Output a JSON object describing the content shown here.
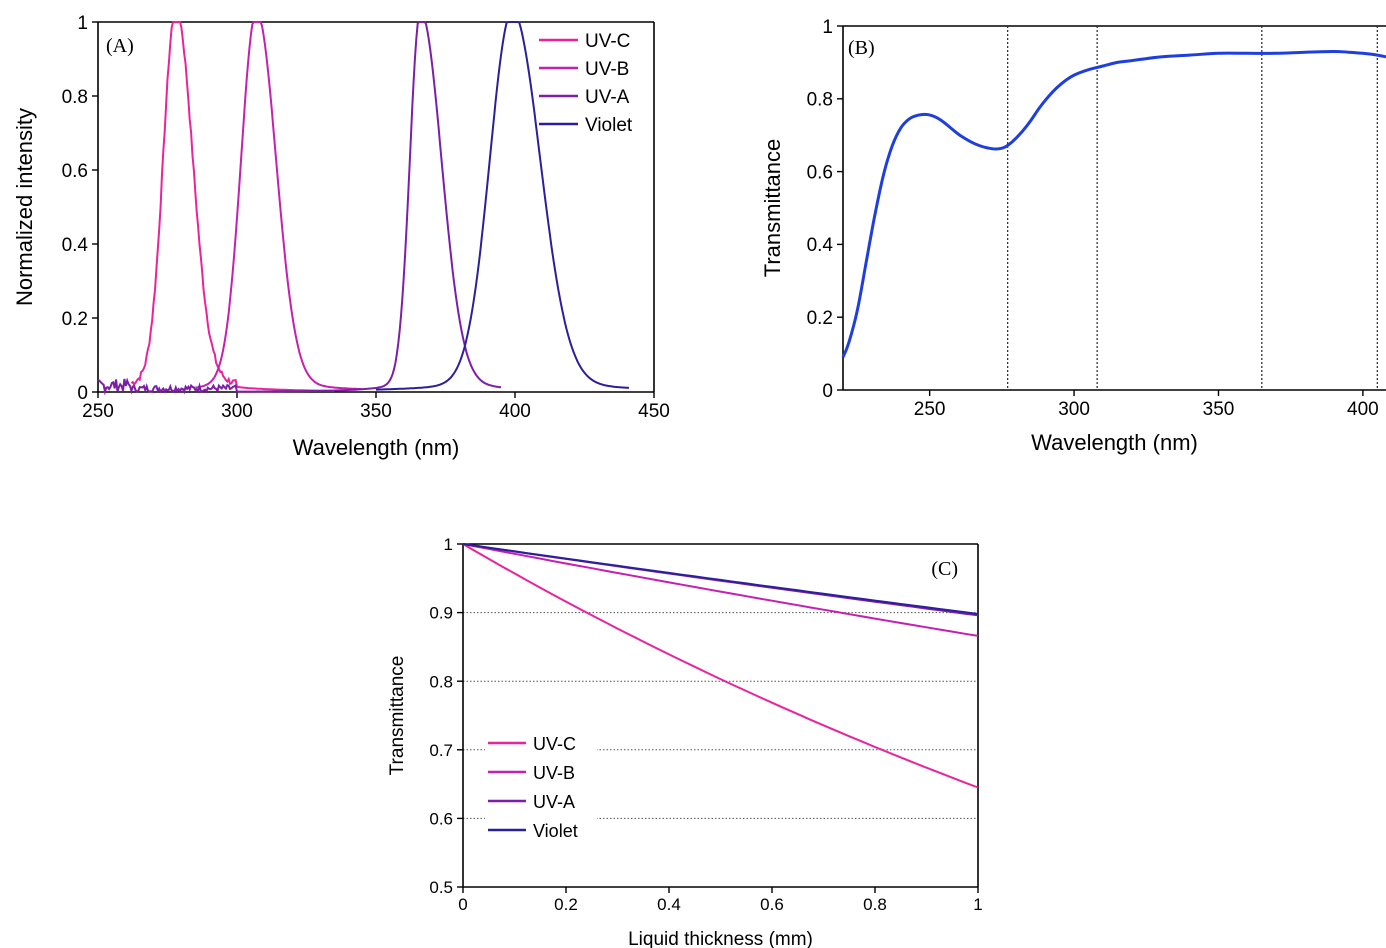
{
  "colors": {
    "uvc": "#e8239c",
    "uvb": "#c51fb0",
    "uva": "#7d1ea8",
    "violet": "#2c1f9a",
    "transmittance_curve": "#1f3fdc",
    "axis": "#000000",
    "grid": "#555555"
  },
  "chart_data": [
    {
      "id": "A",
      "type": "line",
      "panel_label": "(A)",
      "xlabel": "Wavelength (nm)",
      "ylabel": "Normalized intensity",
      "xlim": [
        250,
        450
      ],
      "ylim": [
        0,
        1
      ],
      "xticks": [
        "250",
        "300",
        "350",
        "400",
        "450"
      ],
      "yticks": [
        "0",
        "0.2",
        "0.4",
        "0.6",
        "0.8",
        "1"
      ],
      "legend_position": "top-right",
      "grid": false,
      "series": [
        {
          "name": "UV-C",
          "color_key": "uvc",
          "peak": 278,
          "width_left": 4.5,
          "width_right": 6.0,
          "range": [
            262,
            335
          ]
        },
        {
          "name": "UV-B",
          "color_key": "uvb",
          "peak": 307,
          "width_left": 5.5,
          "width_right": 7.0,
          "range": [
            285,
            345
          ]
        },
        {
          "name": "UV-A",
          "color_key": "uva",
          "peak": 366,
          "width_left": 3.8,
          "width_right": 7.5,
          "range": [
            250,
            395
          ]
        },
        {
          "name": "Violet",
          "color_key": "violet",
          "peak": 399,
          "width_left": 8.0,
          "width_right": 10.0,
          "range": [
            350,
            441
          ]
        }
      ]
    },
    {
      "id": "B",
      "type": "line",
      "panel_label": "(B)",
      "xlabel": "Wavelength (nm)",
      "ylabel": "Transmittance",
      "xlim": [
        220,
        408
      ],
      "ylim": [
        0,
        1
      ],
      "xticks": [
        "250",
        "300",
        "350",
        "400"
      ],
      "yticks": [
        "0",
        "0.2",
        "0.4",
        "0.6",
        "0.8",
        "1"
      ],
      "reference_lines_x": [
        277,
        308,
        365,
        405
      ],
      "grid": false,
      "series": [
        {
          "name": "",
          "color_key": "transmittance_curve",
          "x": [
            220,
            222,
            225,
            228,
            231,
            234,
            237,
            240,
            243,
            246,
            249,
            252,
            255,
            258,
            261,
            264,
            267,
            270,
            273,
            276,
            279,
            282,
            285,
            288,
            291,
            294,
            297,
            300,
            305,
            310,
            315,
            320,
            330,
            340,
            350,
            360,
            370,
            380,
            390,
            395,
            400,
            405,
            408
          ],
          "y": [
            0.09,
            0.13,
            0.22,
            0.35,
            0.48,
            0.59,
            0.67,
            0.72,
            0.745,
            0.755,
            0.757,
            0.75,
            0.735,
            0.715,
            0.697,
            0.683,
            0.672,
            0.665,
            0.662,
            0.667,
            0.685,
            0.71,
            0.74,
            0.775,
            0.805,
            0.83,
            0.85,
            0.865,
            0.88,
            0.89,
            0.9,
            0.905,
            0.915,
            0.92,
            0.925,
            0.925,
            0.925,
            0.928,
            0.93,
            0.928,
            0.925,
            0.92,
            0.915
          ]
        }
      ]
    },
    {
      "id": "C",
      "type": "line",
      "panel_label": "(C)",
      "xlabel": "Liquid thickness (mm)",
      "ylabel": "Transmittance",
      "xlim": [
        0,
        1
      ],
      "ylim": [
        0.5,
        1
      ],
      "xticks": [
        "0",
        "0.2",
        "0.4",
        "0.6",
        "0.8",
        "1"
      ],
      "yticks": [
        "0.5",
        "0.6",
        "0.7",
        "0.8",
        "0.9",
        "1"
      ],
      "legend_position": "bottom-left",
      "grid": true,
      "series": [
        {
          "name": "UV-C",
          "color_key": "uvc",
          "x": [
            0,
            1
          ],
          "y_end": 0.645
        },
        {
          "name": "UV-B",
          "color_key": "uvb",
          "x": [
            0,
            1
          ],
          "y_end": 0.866
        },
        {
          "name": "UV-A",
          "color_key": "uva",
          "x": [
            0,
            1
          ],
          "y_end": 0.896
        },
        {
          "name": "Violet",
          "color_key": "violet",
          "x": [
            0,
            1
          ],
          "y_end": 0.898
        }
      ]
    }
  ]
}
